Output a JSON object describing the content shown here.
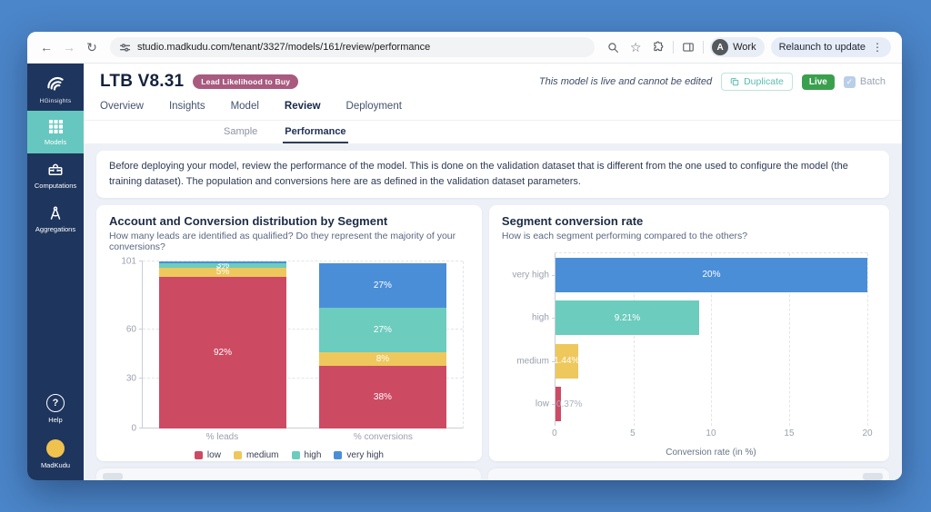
{
  "browser": {
    "url": "studio.madkudu.com/tenant/3327/models/161/review/performance",
    "profile_label": "Work",
    "profile_initial": "A",
    "relaunch_label": "Relaunch to update"
  },
  "sidebar": {
    "logo_label": "HGinsights",
    "items": [
      {
        "label": "Models",
        "active": true
      },
      {
        "label": "Computations",
        "active": false
      },
      {
        "label": "Aggregations",
        "active": false
      }
    ],
    "help_label": "Help",
    "account_label": "MadKudu"
  },
  "header": {
    "title": "LTB V8.31",
    "badge": "Lead Likelihood to Buy",
    "status_note": "This model is live and cannot be edited",
    "duplicate_label": "Duplicate",
    "live_label": "Live",
    "batch_label": "Batch",
    "batch_checked": "✓",
    "tabs": [
      "Overview",
      "Insights",
      "Model",
      "Review",
      "Deployment"
    ],
    "active_tab": "Review"
  },
  "subtabs": {
    "items": [
      "Sample",
      "Performance"
    ],
    "active": "Performance"
  },
  "notice": "Before deploying your model, review the performance of the model. This is done on the validation dataset that is different from the one used to configure the model (the training dataset). The population and conversions here are as defined in the validation dataset parameters.",
  "theme": {
    "frame_blue": "#4b86ca",
    "sidebar_navy": "#1e355e",
    "sidebar_active_teal": "#66c7c0",
    "badge_mauve": "#a85a7f",
    "live_green": "#3ba04e",
    "duplicate_teal": "#58bdb3",
    "segment_low": "#cd4a63",
    "segment_medium": "#eec85c",
    "segment_high": "#6cccbe",
    "segment_very_high": "#4a8ed8"
  },
  "chart_data": [
    {
      "type": "bar",
      "stacked": true,
      "title": "Account and Conversion distribution by Segment",
      "subtitle": "How many leads are identified as qualified? Do they represent the majority of your conversions?",
      "categories": [
        "% leads",
        "% conversions"
      ],
      "series": [
        {
          "name": "low",
          "color": "#cd4a63",
          "values": [
            92,
            38
          ],
          "labels": [
            "92%",
            "38%"
          ]
        },
        {
          "name": "medium",
          "color": "#eec85c",
          "values": [
            5,
            8
          ],
          "labels": [
            "5%",
            "8%"
          ]
        },
        {
          "name": "high",
          "color": "#6cccbe",
          "values": [
            3,
            27
          ],
          "labels": [
            "3%",
            "27%"
          ]
        },
        {
          "name": "very high",
          "color": "#4a8ed8",
          "values": [
            1,
            27
          ],
          "labels": [
            "",
            "27%"
          ]
        }
      ],
      "ylim": [
        0,
        101
      ],
      "yticks": [
        0,
        30,
        60,
        101
      ],
      "grid": "dashed-horizontal",
      "legend_position": "bottom"
    },
    {
      "type": "bar",
      "orientation": "horizontal",
      "title": "Segment conversion rate",
      "subtitle": "How is each segment performing compared to the others?",
      "categories": [
        "very high",
        "high",
        "medium",
        "low"
      ],
      "values": [
        20,
        9.21,
        1.44,
        0.37
      ],
      "labels": [
        "20%",
        "9.21%",
        "1.44%",
        "0.37%"
      ],
      "colors": [
        "#4a8ed8",
        "#6cccbe",
        "#eec85c",
        "#cd4a63"
      ],
      "xlabel": "Conversion rate (in %)",
      "xlim": [
        0,
        20
      ],
      "xticks": [
        0,
        5,
        10,
        15,
        20
      ],
      "grid": "dashed-vertical",
      "legend_position": "none"
    }
  ]
}
